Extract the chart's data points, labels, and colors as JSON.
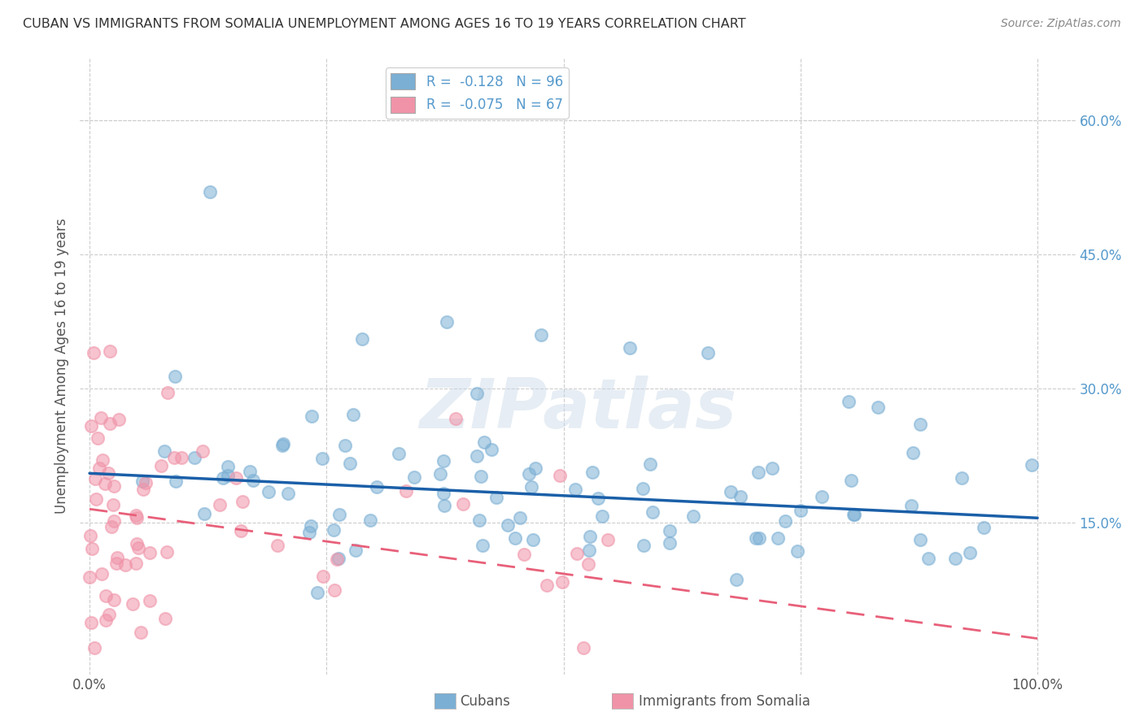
{
  "title": "CUBAN VS IMMIGRANTS FROM SOMALIA UNEMPLOYMENT AMONG AGES 16 TO 19 YEARS CORRELATION CHART",
  "source": "Source: ZipAtlas.com",
  "ylabel": "Unemployment Among Ages 16 to 19 years",
  "right_yticks": [
    "60.0%",
    "45.0%",
    "30.0%",
    "15.0%"
  ],
  "right_ytick_vals": [
    0.6,
    0.45,
    0.3,
    0.15
  ],
  "ylim": [
    -0.02,
    0.67
  ],
  "xlim": [
    -0.01,
    1.04
  ],
  "cuban_color": "#7bafd4",
  "somalia_color": "#f093a8",
  "cuban_line_color": "#1a5fa8",
  "somalia_line_color": "#e8607a",
  "background_color": "#ffffff",
  "grid_color": "#cccccc",
  "title_color": "#333333",
  "right_axis_color": "#5599cc",
  "watermark": "ZIPatlas",
  "cuban_line_x0": 0.0,
  "cuban_line_y0": 0.205,
  "cuban_line_x1": 1.0,
  "cuban_line_y1": 0.155,
  "somalia_line_x0": 0.0,
  "somalia_line_y0": 0.165,
  "somalia_line_x1": 1.0,
  "somalia_line_y1": 0.02
}
